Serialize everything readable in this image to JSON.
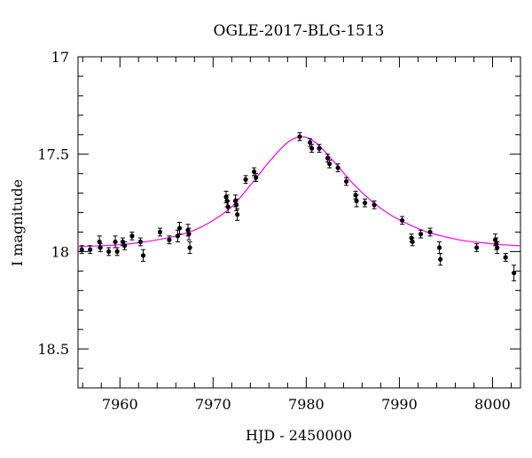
{
  "chart_data": {
    "type": "scatter",
    "title": "OGLE-2017-BLG-1513",
    "xlabel": "HJD - 2450000",
    "ylabel": "I magnitude",
    "xlim": [
      7955.5,
      8003.0
    ],
    "ylim": [
      18.7,
      17.0
    ],
    "y_inverted": true,
    "x_ticks": [
      7960,
      7970,
      7980,
      7990,
      8000
    ],
    "y_ticks": [
      17,
      17.5,
      18,
      18.5
    ],
    "y_tick_labels": [
      "17",
      "17.5",
      "18",
      "18.5"
    ],
    "grid": false,
    "legend": "none",
    "colors": {
      "points": "#000000",
      "model": "#ff00ff"
    },
    "series": [
      {
        "kind": "points_with_errorbars",
        "x": [
          7955.9,
          7956.8,
          7957.8,
          7957.9,
          7958.8,
          7959.5,
          7959.7,
          7960.3,
          7960.5,
          7961.3,
          7962.2,
          7962.5,
          7964.3,
          7965.3,
          7966.2,
          7966.4,
          7967.3,
          7967.4,
          7967.5,
          7971.4,
          7971.5,
          7971.6,
          7972.4,
          7972.5,
          7972.6,
          7973.5,
          7974.4,
          7974.6,
          7979.3,
          7980.4,
          7980.6,
          7981.4,
          7982.3,
          7982.5,
          7983.4,
          7984.3,
          7985.3,
          7985.4,
          7986.3,
          7987.3,
          7990.3,
          7991.3,
          7991.4,
          7992.3,
          7993.3,
          7994.3,
          7994.4,
          7998.3,
          8000.3,
          8000.4,
          8000.5,
          8001.4,
          8002.3
        ],
        "y": [
          17.99,
          17.99,
          17.95,
          17.98,
          18.0,
          17.95,
          18.0,
          17.95,
          17.97,
          17.92,
          17.95,
          18.02,
          17.9,
          17.94,
          17.92,
          17.88,
          17.89,
          17.91,
          17.98,
          17.72,
          17.74,
          17.77,
          17.74,
          17.76,
          17.81,
          17.63,
          17.59,
          17.62,
          17.41,
          17.44,
          17.47,
          17.47,
          17.52,
          17.55,
          17.57,
          17.64,
          17.71,
          17.74,
          17.75,
          17.76,
          17.84,
          17.93,
          17.95,
          17.91,
          17.9,
          17.98,
          18.04,
          17.98,
          17.94,
          17.96,
          17.98,
          18.03,
          18.11
        ],
        "yerr": [
          0.02,
          0.02,
          0.03,
          0.02,
          0.02,
          0.03,
          0.02,
          0.02,
          0.02,
          0.02,
          0.02,
          0.03,
          0.02,
          0.02,
          0.03,
          0.03,
          0.03,
          0.03,
          0.03,
          0.03,
          0.03,
          0.03,
          0.03,
          0.03,
          0.03,
          0.02,
          0.02,
          0.02,
          0.02,
          0.02,
          0.02,
          0.02,
          0.02,
          0.02,
          0.02,
          0.02,
          0.02,
          0.03,
          0.02,
          0.02,
          0.02,
          0.02,
          0.02,
          0.02,
          0.02,
          0.03,
          0.03,
          0.02,
          0.03,
          0.03,
          0.03,
          0.02,
          0.04
        ]
      },
      {
        "kind": "model_curve",
        "x": [
          7955.5,
          7958,
          7960,
          7962,
          7964,
          7966,
          7968,
          7970,
          7972,
          7974,
          7976,
          7978,
          7979.5,
          7981,
          7983,
          7985,
          7987,
          7989,
          7991,
          7993,
          7995,
          7997,
          7999,
          8001,
          8003
        ],
        "y": [
          17.975,
          17.97,
          17.965,
          17.955,
          17.94,
          17.92,
          17.89,
          17.84,
          17.77,
          17.66,
          17.54,
          17.44,
          17.41,
          17.44,
          17.54,
          17.65,
          17.74,
          17.81,
          17.86,
          17.9,
          17.925,
          17.945,
          17.955,
          17.965,
          17.97
        ]
      }
    ]
  }
}
